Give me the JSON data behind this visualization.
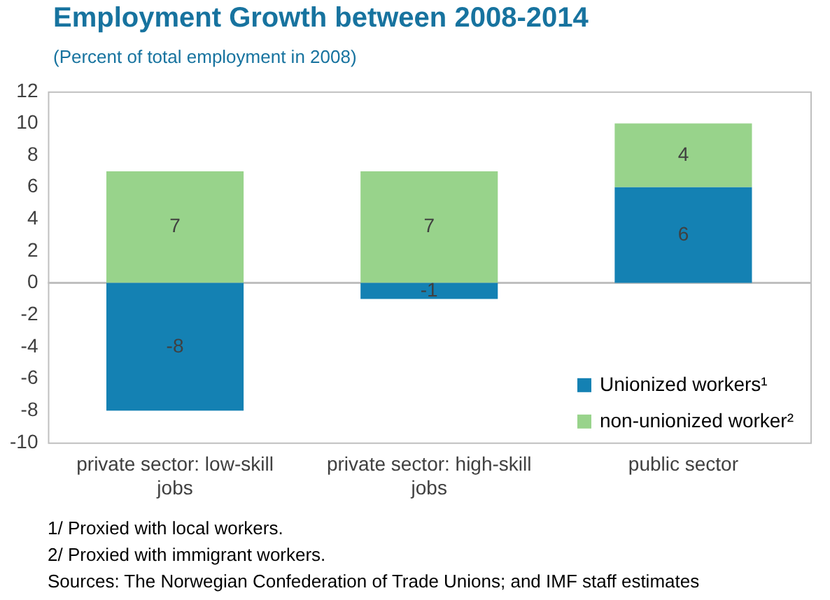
{
  "chart_data": {
    "type": "bar",
    "title": "Employment Growth between 2008-2014",
    "subtitle": "(Percent of total employment in 2008)",
    "categories": [
      "private sector: low-skill jobs",
      "private sector: high-skill jobs",
      "public sector"
    ],
    "series": [
      {
        "name": "Unionized workers¹",
        "color": "#1481b3",
        "values": [
          -8,
          -1,
          6
        ]
      },
      {
        "name": "non-unionized worker²",
        "color": "#98d38b",
        "values": [
          7,
          7,
          4
        ]
      }
    ],
    "stacked": true,
    "ref_lines": [
      {
        "axis": "y",
        "value": 0,
        "color": "#bfbfbf"
      }
    ],
    "data_labels": true,
    "legend": "bottom right",
    "grid": false,
    "ylim": [
      -10,
      12
    ],
    "yticks": [
      -10,
      -8,
      -6,
      -4,
      -2,
      0,
      2,
      4,
      6,
      8,
      10,
      12
    ],
    "annotations": [
      "1/ Proxied with local workers.",
      "2/ Proxied with immigrant workers.",
      "Sources: The Norwegian Confederation of Trade Unions; and IMF staff estimates"
    ]
  }
}
